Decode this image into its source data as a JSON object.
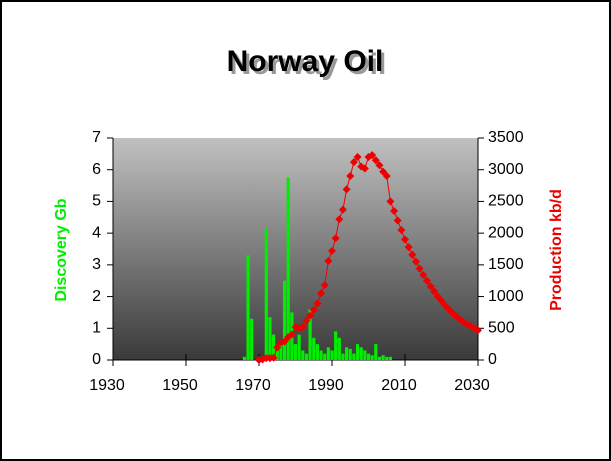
{
  "chart_data": {
    "type": "combo",
    "title": "Norway Oil",
    "y_label": "Discovery Gb",
    "y2_label": "Production kb/d",
    "xlim": [
      1930,
      2030
    ],
    "xticks": [
      1930,
      1950,
      1970,
      1990,
      2010,
      2030
    ],
    "ylim": [
      0,
      7
    ],
    "yticks": [
      0,
      1,
      2,
      3,
      4,
      5,
      6,
      7
    ],
    "y2lim": [
      0,
      3500
    ],
    "y2ticks": [
      0,
      500,
      1000,
      1500,
      2000,
      2500,
      3000,
      3500
    ],
    "series": [
      {
        "type": "bar",
        "color": "#00ee00",
        "x": [
          1966,
          1967,
          1968,
          1972,
          1973,
          1974,
          1975,
          1976,
          1977,
          1978,
          1979,
          1980,
          1981,
          1982,
          1983,
          1984,
          1985,
          1986,
          1987,
          1988,
          1989,
          1990,
          1991,
          1992,
          1993,
          1994,
          1995,
          1996,
          1997,
          1998,
          1999,
          2000,
          2001,
          2002,
          2003,
          2004,
          2005,
          2006
        ],
        "values": [
          0.1,
          3.3,
          1.3,
          4.15,
          1.35,
          0.8,
          0.3,
          0.5,
          2.5,
          5.75,
          1.5,
          0.5,
          0.8,
          0.3,
          0.2,
          1.6,
          0.7,
          0.5,
          0.3,
          0.2,
          0.4,
          0.3,
          0.9,
          0.7,
          0.2,
          0.4,
          0.35,
          0.2,
          0.5,
          0.4,
          0.3,
          0.2,
          0.15,
          0.5,
          0.1,
          0.15,
          0.1,
          0.1
        ]
      },
      {
        "type": "line",
        "color": "#ee0000",
        "axis": "y2",
        "x": [
          1970,
          1971,
          1972,
          1973,
          1974,
          1975,
          1976,
          1977,
          1978,
          1979,
          1980,
          1981,
          1982,
          1983,
          1984,
          1985,
          1986,
          1987,
          1988,
          1989,
          1990,
          1991,
          1992,
          1993,
          1994,
          1995,
          1996,
          1997,
          1998,
          1999,
          2000,
          2001,
          2002,
          2003,
          2004,
          2005,
          2006,
          2007,
          2008,
          2009,
          2010,
          2011,
          2012,
          2013,
          2014,
          2015,
          2016,
          2017,
          2018,
          2019,
          2020,
          2021,
          2022,
          2023,
          2024,
          2025,
          2026,
          2027,
          2028,
          2029,
          2030
        ],
        "values": [
          0,
          10,
          30,
          30,
          35,
          200,
          280,
          290,
          360,
          400,
          520,
          500,
          520,
          620,
          700,
          790,
          890,
          1050,
          1180,
          1560,
          1720,
          1920,
          2220,
          2370,
          2690,
          2900,
          3120,
          3200,
          3050,
          3020,
          3200,
          3230,
          3150,
          3070,
          2970,
          2900,
          2500,
          2350,
          2200,
          2050,
          1900,
          1780,
          1660,
          1550,
          1440,
          1340,
          1250,
          1160,
          1080,
          1000,
          930,
          860,
          800,
          740,
          690,
          640,
          600,
          560,
          530,
          500,
          470
        ]
      }
    ]
  }
}
